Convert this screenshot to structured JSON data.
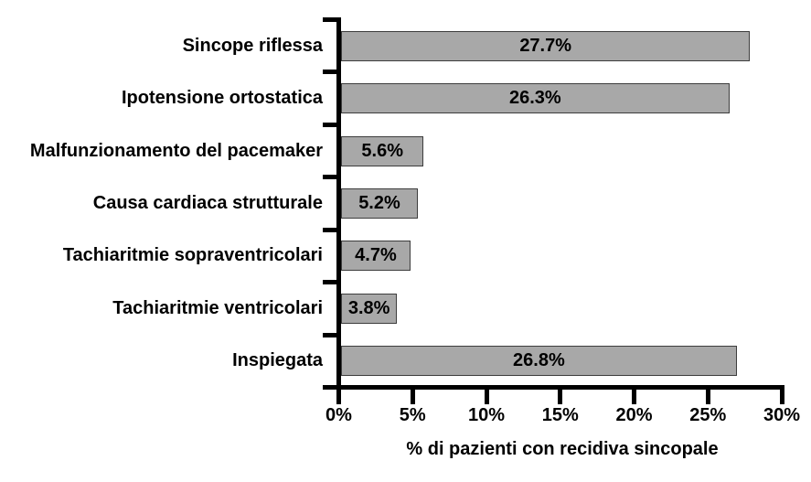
{
  "chart_data": {
    "type": "bar",
    "orientation": "horizontal",
    "title": "",
    "xlabel": "% di pazienti con recidiva sincopale",
    "ylabel": "",
    "categories": [
      "Sincope riflessa",
      "Ipotensione ortostatica",
      "Malfunzionamento del pacemaker",
      "Causa cardiaca strutturale",
      "Tachiaritmie sopraventricolari",
      "Tachiaritmie ventricolari",
      "Inspiegata"
    ],
    "values": [
      27.7,
      26.3,
      5.6,
      5.2,
      4.7,
      3.8,
      26.8
    ],
    "value_labels": [
      "27.7%",
      "26.3%",
      "5.6%",
      "5.2%",
      "4.7%",
      "3.8%",
      "26.8%"
    ],
    "x_tick_labels": [
      "0%",
      "5%",
      "10%",
      "15%",
      "20%",
      "25%",
      "30%"
    ],
    "x_tick_values": [
      0,
      5,
      10,
      15,
      20,
      25,
      30
    ],
    "xlim": [
      0,
      30
    ],
    "grid": false,
    "legend": false,
    "colors": {
      "bar_fill": "#a8a8a8",
      "bar_border": "#3d3d3d",
      "axis": "#000000",
      "text": "#000000",
      "background": "#ffffff"
    }
  }
}
